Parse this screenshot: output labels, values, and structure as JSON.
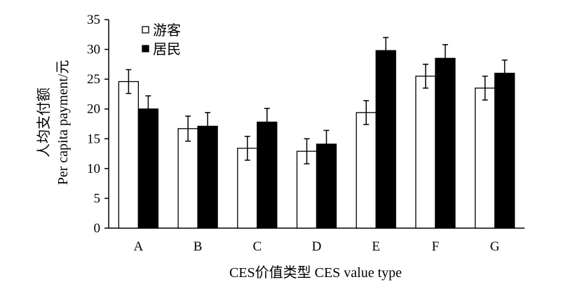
{
  "chart_data": {
    "type": "bar",
    "categories": [
      "A",
      "B",
      "C",
      "D",
      "E",
      "F",
      "G"
    ],
    "series": [
      {
        "name": "游客",
        "color": "#ffffff",
        "values": [
          24.6,
          16.7,
          13.4,
          12.9,
          19.4,
          25.5,
          23.5
        ],
        "errors": [
          2.0,
          2.1,
          2.0,
          2.1,
          2.0,
          2.0,
          2.0
        ]
      },
      {
        "name": "居民",
        "color": "#000000",
        "values": [
          20.0,
          17.1,
          17.8,
          14.1,
          29.8,
          28.5,
          26.0
        ],
        "errors": [
          2.2,
          2.3,
          2.3,
          2.3,
          2.2,
          2.3,
          2.2
        ]
      }
    ],
    "ylim": [
      0,
      35
    ],
    "yticks": [
      0,
      5,
      10,
      15,
      20,
      25,
      30,
      35
    ],
    "ylabel_cn": "人均支付额",
    "ylabel_en": "Per capita payment/元",
    "xlabel": "CES价值类型 CES value type",
    "legend_position": "top-left",
    "grid": false
  }
}
